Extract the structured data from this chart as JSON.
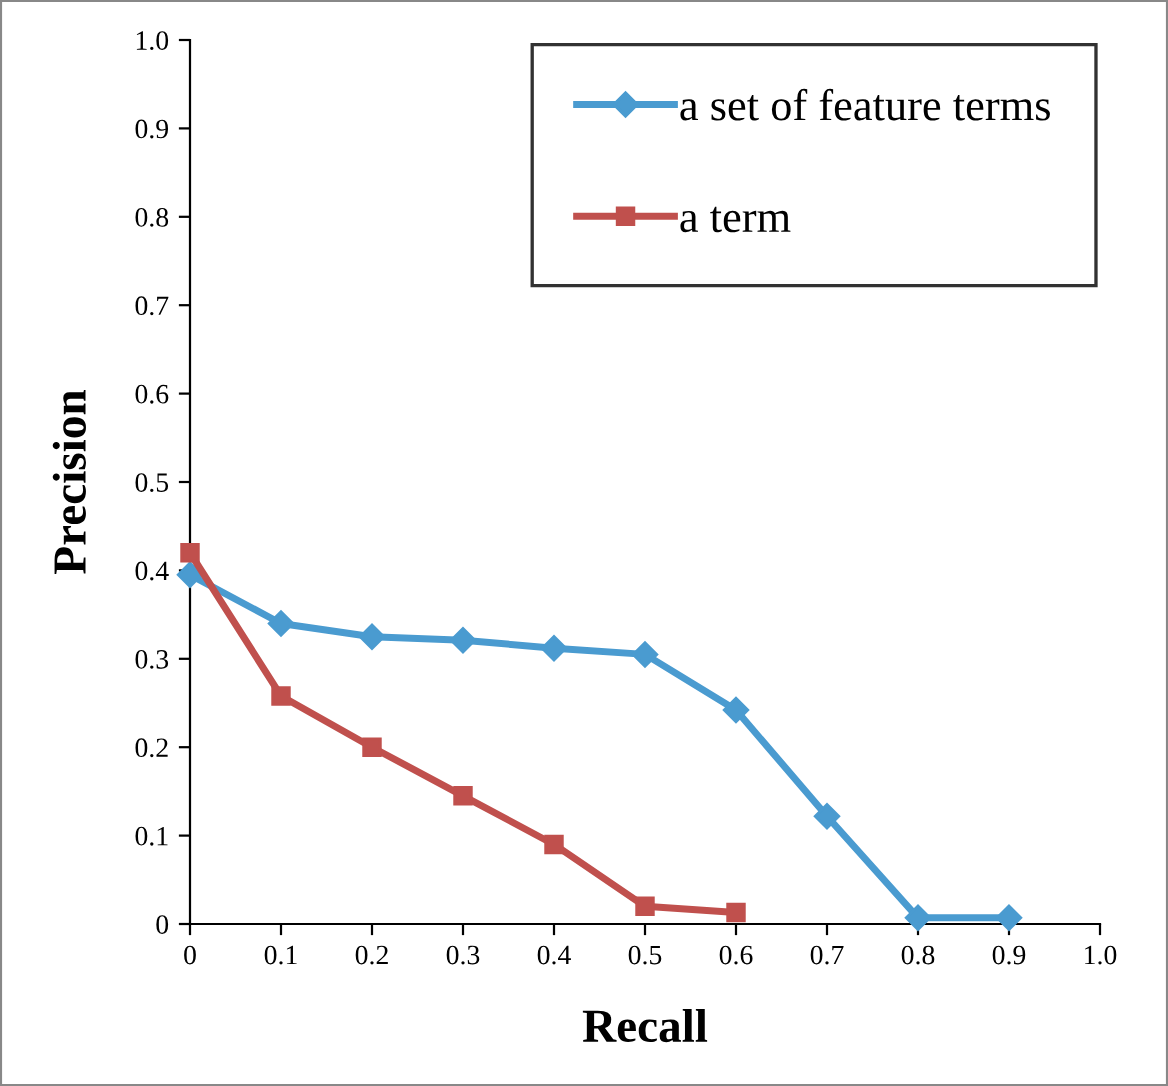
{
  "chart_data": {
    "type": "line",
    "xlabel": "Recall",
    "ylabel": "Precision",
    "x": [
      0,
      0.1,
      0.2,
      0.3,
      0.4,
      0.5,
      0.6,
      0.7,
      0.8,
      0.9
    ],
    "series": [
      {
        "name": "a set of feature terms",
        "color": "#4a9bd0",
        "values": [
          0.395,
          0.34,
          0.325,
          0.321,
          0.312,
          0.305,
          0.242,
          0.122,
          0.007,
          0.007
        ]
      },
      {
        "name": "a term",
        "color": "#c0504d",
        "marker": "square",
        "values": [
          0.42,
          0.258,
          0.2,
          0.145,
          0.09,
          0.02,
          0.013,
          null,
          null,
          null
        ]
      }
    ],
    "marker": "diamond",
    "line_style": "solid",
    "grid": false,
    "legend": "top right",
    "xlim": [
      0,
      1
    ],
    "ylim": [
      0,
      1
    ],
    "xticks": [
      0,
      0.1,
      0.2,
      0.3,
      0.4,
      0.5,
      0.6,
      0.7,
      0.8,
      0.9,
      {
        "value": 1,
        "label": "1.0"
      }
    ],
    "yticks": [
      0,
      0.1,
      0.2,
      0.3,
      0.4,
      0.5,
      0.6,
      0.7,
      0.8,
      0.9,
      {
        "value": 1,
        "label": "1.0"
      }
    ]
  }
}
